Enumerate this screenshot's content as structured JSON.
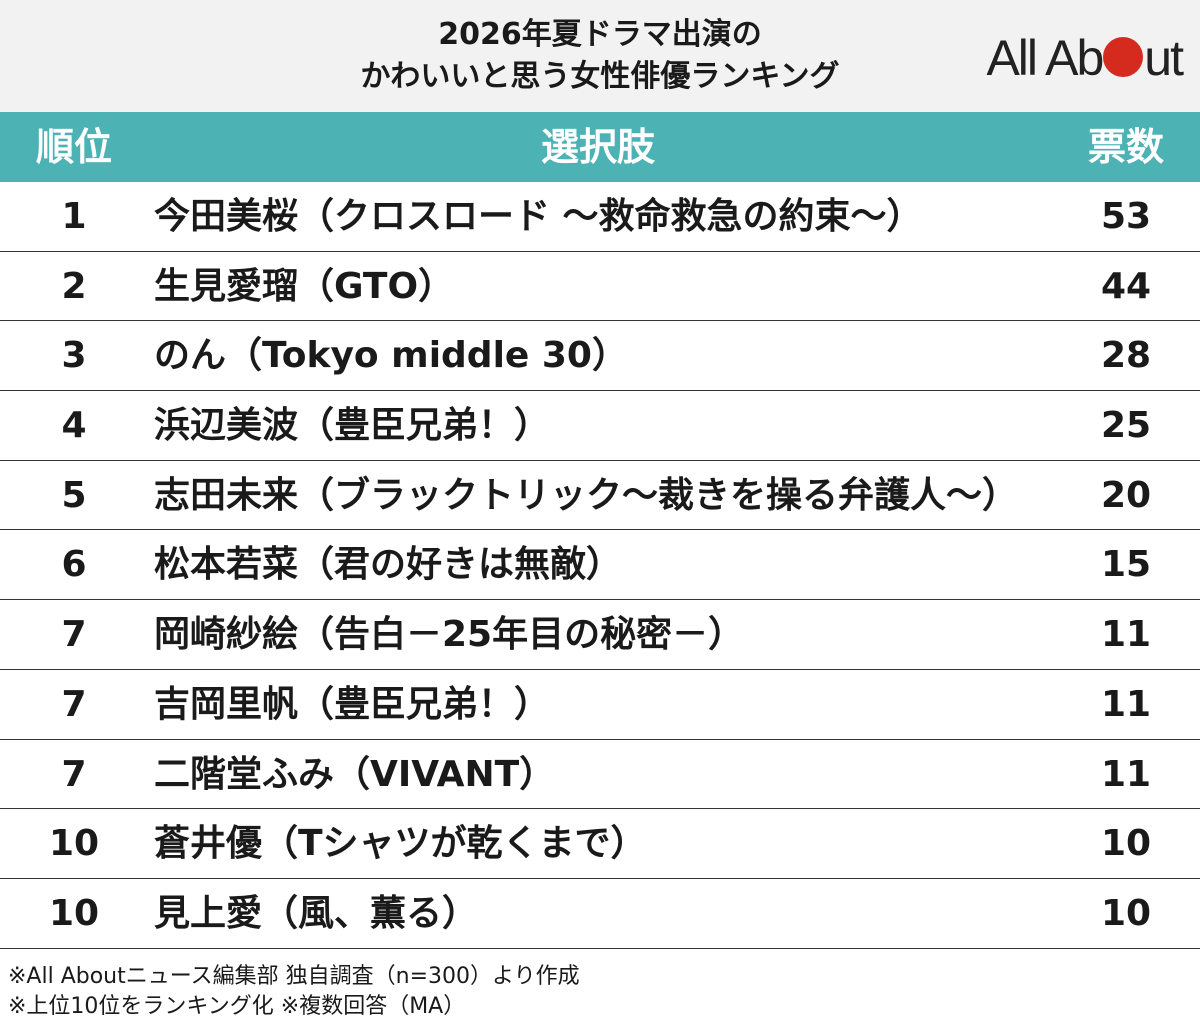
{
  "header": {
    "title_line1": "2026年夏ドラマ出演の",
    "title_line2": "かわいいと思う女性俳優ランキング",
    "logo_text_before": "All Ab",
    "logo_text_after": "ut",
    "logo_dot_color": "#d42b1e"
  },
  "colors": {
    "header_bar": "#4cb2b4",
    "header_bg": "#f2f2f2"
  },
  "chart_data": {
    "type": "table",
    "columns": [
      "順位",
      "選択肢",
      "票数"
    ],
    "rows": [
      {
        "rank": "1",
        "choice": "今田美桜（クロスロード ～救命救急の約束～）",
        "votes": "53"
      },
      {
        "rank": "2",
        "choice": "生見愛瑠（GTO）",
        "votes": "44"
      },
      {
        "rank": "3",
        "choice": "のん（Tokyo middle 30）",
        "votes": "28"
      },
      {
        "rank": "4",
        "choice": "浜辺美波（豊臣兄弟！）",
        "votes": "25"
      },
      {
        "rank": "5",
        "choice": "志田未来（ブラックトリック～裁きを操る弁護人～）",
        "votes": "20"
      },
      {
        "rank": "6",
        "choice": "松本若菜（君の好きは無敵）",
        "votes": "15"
      },
      {
        "rank": "7",
        "choice": "岡崎紗絵（告白－25年目の秘密－）",
        "votes": "11"
      },
      {
        "rank": "7",
        "choice": "吉岡里帆（豊臣兄弟！）",
        "votes": "11"
      },
      {
        "rank": "7",
        "choice": "二階堂ふみ（VIVANT）",
        "votes": "11"
      },
      {
        "rank": "10",
        "choice": "蒼井優（Tシャツが乾くまで）",
        "votes": "10"
      },
      {
        "rank": "10",
        "choice": "見上愛（風、薫る）",
        "votes": "10"
      }
    ]
  },
  "footer": {
    "line1": "※All Aboutニュース編集部 独自調査（n=300）より作成",
    "line2": "※上位10位をランキング化 ※複数回答（MA）"
  }
}
